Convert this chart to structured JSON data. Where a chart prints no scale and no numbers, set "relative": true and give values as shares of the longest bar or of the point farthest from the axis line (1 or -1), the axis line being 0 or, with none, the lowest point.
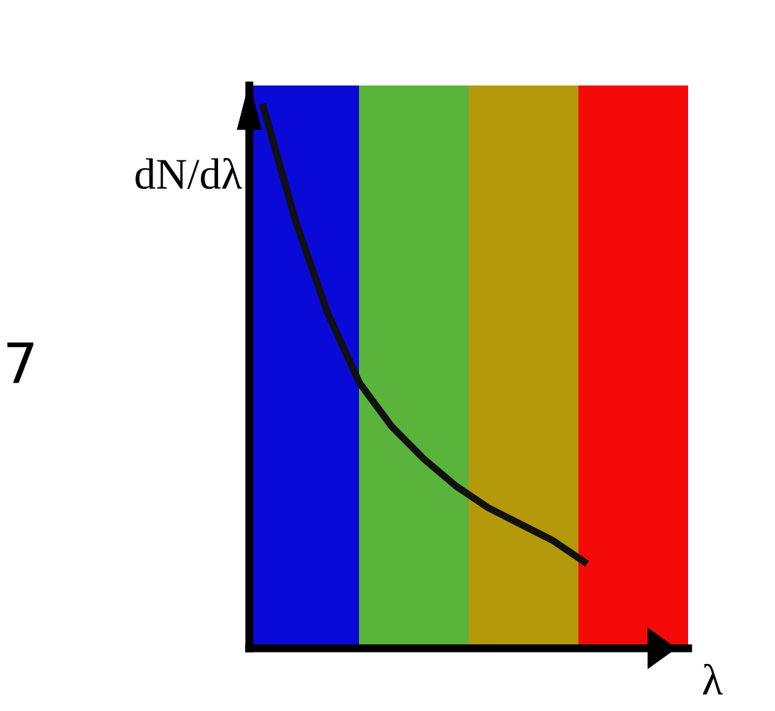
{
  "chart_data": {
    "type": "line",
    "relative": true,
    "xlabel": "λ",
    "ylabel": "dN/dλ",
    "categories": [
      null,
      null,
      null,
      null,
      null,
      null,
      null,
      null,
      null,
      null,
      null
    ],
    "series": [
      {
        "color": "#111111",
        "values": [
          1,
          0.79,
          0.62,
          0.49,
          0.41,
          0.35,
          0.3,
          0.26,
          0.23,
          0.2,
          0.16
        ]
      }
    ],
    "marker": "none",
    "line_style": "solid",
    "grid": false,
    "legend": false,
    "annotations": [
      "7"
    ]
  }
}
